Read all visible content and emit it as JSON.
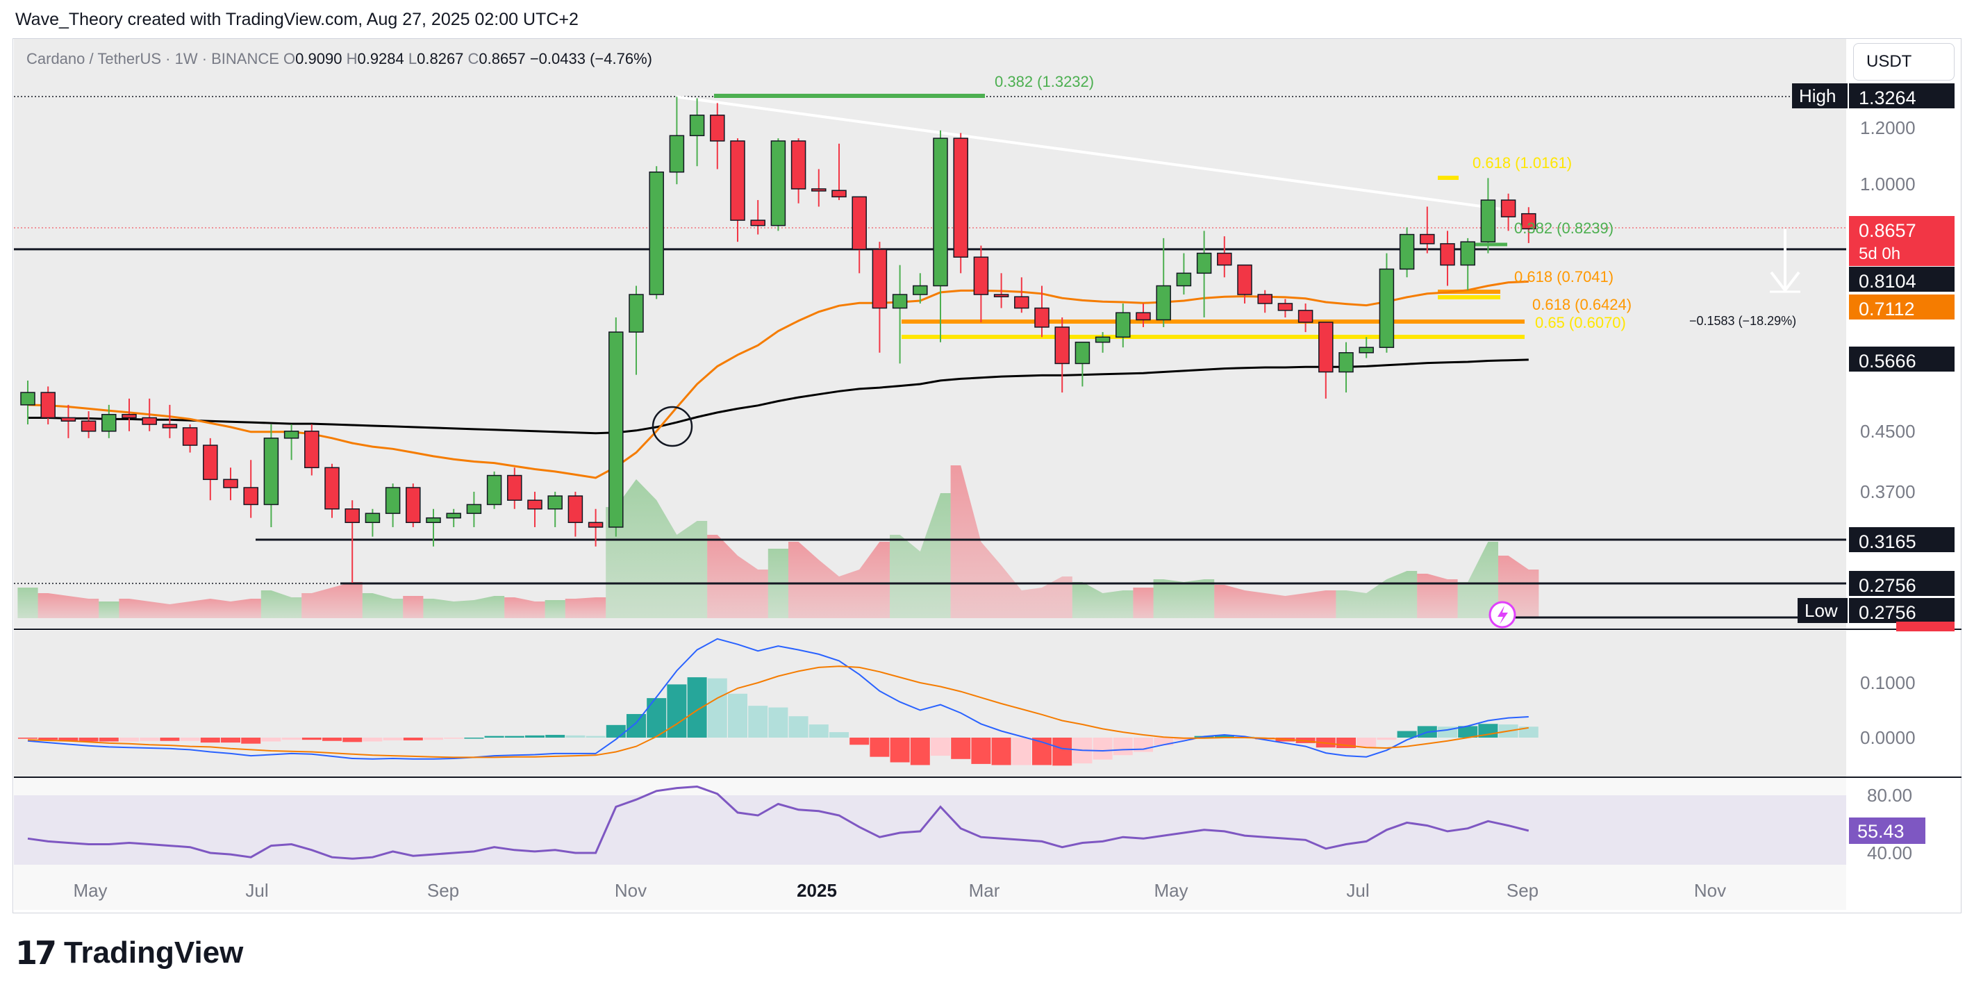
{
  "credit": "Wave_Theory created with TradingView.com, Aug 27, 2025 02:00 UTC+2",
  "brand": {
    "name": "TradingView",
    "mark": "17"
  },
  "currency_button": "USDT",
  "legend": {
    "symbol": "Cardano / TetherUS · 1W · BINANCE",
    "o_label": "O",
    "o": "0.9090",
    "h_label": "H",
    "h": "0.9284",
    "l_label": "L",
    "l": "0.8267",
    "c_label": "C",
    "c": "0.8657",
    "change": "−0.0433 (−4.76%)"
  },
  "colors": {
    "up": "#4caf50",
    "down": "#f23645",
    "ema_orange": "#f57c00",
    "ema_black": "#000000",
    "fib_yellow": "#ffe600",
    "fib_orange": "#ff9800",
    "fib_green": "#4caf50",
    "macd_line": "#2962ff",
    "signal_line": "#f57c00",
    "rsi_line": "#7e57c2"
  },
  "chart_data": [
    {
      "type": "candlestick",
      "title": "Cardano / TetherUS · 1W · BINANCE",
      "x_ticks": [
        "May",
        "Jul",
        "Sep",
        "Nov",
        "2025",
        "Mar",
        "May",
        "Jul",
        "Sep",
        "Nov"
      ],
      "y_scale": "log",
      "y_ticks": [
        1.2,
        1.0,
        0.45,
        0.37
      ],
      "y_tick_labels": [
        "1.2000",
        "1.0000",
        "0.4500",
        "0.3700"
      ],
      "ohlc": [
        {
          "o": 0.49,
          "h": 0.53,
          "l": 0.46,
          "c": 0.51
        },
        {
          "o": 0.51,
          "h": 0.52,
          "l": 0.46,
          "c": 0.47
        },
        {
          "o": 0.47,
          "h": 0.49,
          "l": 0.44,
          "c": 0.465
        },
        {
          "o": 0.465,
          "h": 0.48,
          "l": 0.44,
          "c": 0.45
        },
        {
          "o": 0.45,
          "h": 0.49,
          "l": 0.44,
          "c": 0.475
        },
        {
          "o": 0.475,
          "h": 0.5,
          "l": 0.45,
          "c": 0.47
        },
        {
          "o": 0.47,
          "h": 0.5,
          "l": 0.45,
          "c": 0.46
        },
        {
          "o": 0.46,
          "h": 0.49,
          "l": 0.44,
          "c": 0.455
        },
        {
          "o": 0.455,
          "h": 0.46,
          "l": 0.42,
          "c": 0.43
        },
        {
          "o": 0.43,
          "h": 0.44,
          "l": 0.36,
          "c": 0.385
        },
        {
          "o": 0.385,
          "h": 0.4,
          "l": 0.36,
          "c": 0.375
        },
        {
          "o": 0.375,
          "h": 0.41,
          "l": 0.34,
          "c": 0.355
        },
        {
          "o": 0.355,
          "h": 0.46,
          "l": 0.33,
          "c": 0.44
        },
        {
          "o": 0.44,
          "h": 0.46,
          "l": 0.41,
          "c": 0.45
        },
        {
          "o": 0.45,
          "h": 0.46,
          "l": 0.39,
          "c": 0.4
        },
        {
          "o": 0.4,
          "h": 0.405,
          "l": 0.34,
          "c": 0.35
        },
        {
          "o": 0.35,
          "h": 0.36,
          "l": 0.2756,
          "c": 0.335
        },
        {
          "o": 0.335,
          "h": 0.35,
          "l": 0.32,
          "c": 0.345
        },
        {
          "o": 0.345,
          "h": 0.38,
          "l": 0.33,
          "c": 0.375
        },
        {
          "o": 0.375,
          "h": 0.38,
          "l": 0.33,
          "c": 0.335
        },
        {
          "o": 0.335,
          "h": 0.35,
          "l": 0.31,
          "c": 0.34
        },
        {
          "o": 0.34,
          "h": 0.35,
          "l": 0.33,
          "c": 0.345
        },
        {
          "o": 0.345,
          "h": 0.37,
          "l": 0.33,
          "c": 0.355
        },
        {
          "o": 0.355,
          "h": 0.395,
          "l": 0.35,
          "c": 0.39
        },
        {
          "o": 0.39,
          "h": 0.4,
          "l": 0.35,
          "c": 0.36
        },
        {
          "o": 0.36,
          "h": 0.37,
          "l": 0.33,
          "c": 0.35
        },
        {
          "o": 0.35,
          "h": 0.37,
          "l": 0.33,
          "c": 0.365
        },
        {
          "o": 0.365,
          "h": 0.37,
          "l": 0.32,
          "c": 0.335
        },
        {
          "o": 0.335,
          "h": 0.35,
          "l": 0.31,
          "c": 0.33
        },
        {
          "o": 0.33,
          "h": 0.65,
          "l": 0.32,
          "c": 0.62
        },
        {
          "o": 0.62,
          "h": 0.72,
          "l": 0.54,
          "c": 0.7
        },
        {
          "o": 0.7,
          "h": 1.06,
          "l": 0.69,
          "c": 1.04
        },
        {
          "o": 1.04,
          "h": 1.3264,
          "l": 1.0,
          "c": 1.17
        },
        {
          "o": 1.17,
          "h": 1.32,
          "l": 1.06,
          "c": 1.25
        },
        {
          "o": 1.25,
          "h": 1.3,
          "l": 1.05,
          "c": 1.15
        },
        {
          "o": 1.15,
          "h": 1.16,
          "l": 0.83,
          "c": 0.89
        },
        {
          "o": 0.89,
          "h": 0.95,
          "l": 0.85,
          "c": 0.875
        },
        {
          "o": 0.875,
          "h": 1.16,
          "l": 0.86,
          "c": 1.15
        },
        {
          "o": 1.15,
          "h": 1.16,
          "l": 0.94,
          "c": 0.985
        },
        {
          "o": 0.985,
          "h": 1.05,
          "l": 0.93,
          "c": 0.98
        },
        {
          "o": 0.98,
          "h": 1.14,
          "l": 0.95,
          "c": 0.96
        },
        {
          "o": 0.96,
          "h": 0.96,
          "l": 0.75,
          "c": 0.81
        },
        {
          "o": 0.81,
          "h": 0.83,
          "l": 0.58,
          "c": 0.67
        },
        {
          "o": 0.67,
          "h": 0.77,
          "l": 0.56,
          "c": 0.7
        },
        {
          "o": 0.7,
          "h": 0.75,
          "l": 0.68,
          "c": 0.72
        },
        {
          "o": 0.72,
          "h": 1.19,
          "l": 0.6,
          "c": 1.16
        },
        {
          "o": 1.16,
          "h": 1.18,
          "l": 0.75,
          "c": 0.79
        },
        {
          "o": 0.79,
          "h": 0.82,
          "l": 0.64,
          "c": 0.7
        },
        {
          "o": 0.7,
          "h": 0.75,
          "l": 0.67,
          "c": 0.695
        },
        {
          "o": 0.695,
          "h": 0.74,
          "l": 0.66,
          "c": 0.67
        },
        {
          "o": 0.67,
          "h": 0.72,
          "l": 0.61,
          "c": 0.63
        },
        {
          "o": 0.63,
          "h": 0.65,
          "l": 0.51,
          "c": 0.56
        },
        {
          "o": 0.56,
          "h": 0.6,
          "l": 0.52,
          "c": 0.6
        },
        {
          "o": 0.6,
          "h": 0.62,
          "l": 0.58,
          "c": 0.61
        },
        {
          "o": 0.61,
          "h": 0.68,
          "l": 0.59,
          "c": 0.66
        },
        {
          "o": 0.66,
          "h": 0.68,
          "l": 0.63,
          "c": 0.645
        },
        {
          "o": 0.645,
          "h": 0.84,
          "l": 0.63,
          "c": 0.72
        },
        {
          "o": 0.72,
          "h": 0.8,
          "l": 0.7,
          "c": 0.75
        },
        {
          "o": 0.75,
          "h": 0.86,
          "l": 0.65,
          "c": 0.8
        },
        {
          "o": 0.8,
          "h": 0.845,
          "l": 0.74,
          "c": 0.77
        },
        {
          "o": 0.77,
          "h": 0.77,
          "l": 0.68,
          "c": 0.7
        },
        {
          "o": 0.7,
          "h": 0.71,
          "l": 0.66,
          "c": 0.68
        },
        {
          "o": 0.68,
          "h": 0.69,
          "l": 0.65,
          "c": 0.665
        },
        {
          "o": 0.665,
          "h": 0.68,
          "l": 0.62,
          "c": 0.64
        },
        {
          "o": 0.64,
          "h": 0.64,
          "l": 0.5,
          "c": 0.545
        },
        {
          "o": 0.545,
          "h": 0.6,
          "l": 0.51,
          "c": 0.58
        },
        {
          "o": 0.58,
          "h": 0.61,
          "l": 0.57,
          "c": 0.59
        },
        {
          "o": 0.59,
          "h": 0.8,
          "l": 0.58,
          "c": 0.76
        },
        {
          "o": 0.76,
          "h": 0.87,
          "l": 0.74,
          "c": 0.85
        },
        {
          "o": 0.85,
          "h": 0.93,
          "l": 0.8,
          "c": 0.825
        },
        {
          "o": 0.825,
          "h": 0.86,
          "l": 0.72,
          "c": 0.77
        },
        {
          "o": 0.77,
          "h": 0.84,
          "l": 0.71,
          "c": 0.83
        },
        {
          "o": 0.83,
          "h": 1.02,
          "l": 0.8,
          "c": 0.95
        },
        {
          "o": 0.95,
          "h": 0.97,
          "l": 0.86,
          "c": 0.9
        },
        {
          "o": 0.909,
          "h": 0.9284,
          "l": 0.8267,
          "c": 0.8657
        }
      ],
      "volume": [
        0.22,
        0.18,
        0.16,
        0.14,
        0.12,
        0.14,
        0.12,
        0.1,
        0.12,
        0.14,
        0.12,
        0.14,
        0.2,
        0.15,
        0.18,
        0.22,
        0.26,
        0.18,
        0.14,
        0.16,
        0.14,
        0.12,
        0.13,
        0.16,
        0.15,
        0.12,
        0.13,
        0.14,
        0.15,
        0.8,
        1.0,
        0.85,
        0.6,
        0.7,
        0.6,
        0.45,
        0.35,
        0.5,
        0.55,
        0.42,
        0.3,
        0.35,
        0.55,
        0.6,
        0.48,
        0.9,
        1.1,
        0.55,
        0.38,
        0.2,
        0.22,
        0.3,
        0.26,
        0.18,
        0.2,
        0.22,
        0.28,
        0.26,
        0.28,
        0.24,
        0.2,
        0.18,
        0.16,
        0.18,
        0.2,
        0.2,
        0.18,
        0.28,
        0.34,
        0.32,
        0.28,
        0.26,
        0.55,
        0.45,
        0.35
      ],
      "ema_short": [
        0.49,
        0.489,
        0.487,
        0.484,
        0.481,
        0.478,
        0.475,
        0.472,
        0.468,
        0.462,
        0.456,
        0.449,
        0.449,
        0.449,
        0.446,
        0.44,
        0.433,
        0.428,
        0.425,
        0.42,
        0.415,
        0.411,
        0.408,
        0.406,
        0.402,
        0.398,
        0.395,
        0.391,
        0.387,
        0.401,
        0.42,
        0.45,
        0.486,
        0.524,
        0.555,
        0.576,
        0.594,
        0.622,
        0.643,
        0.662,
        0.675,
        0.681,
        0.681,
        0.683,
        0.686,
        0.705,
        0.709,
        0.709,
        0.708,
        0.706,
        0.702,
        0.692,
        0.687,
        0.684,
        0.683,
        0.681,
        0.683,
        0.686,
        0.692,
        0.695,
        0.696,
        0.695,
        0.694,
        0.691,
        0.683,
        0.679,
        0.676,
        0.684,
        0.694,
        0.702,
        0.705,
        0.71,
        0.72,
        0.728,
        0.73
      ],
      "ema_long": [
        0.47,
        0.47,
        0.469,
        0.469,
        0.468,
        0.468,
        0.467,
        0.467,
        0.466,
        0.465,
        0.464,
        0.463,
        0.462,
        0.461,
        0.461,
        0.46,
        0.459,
        0.458,
        0.457,
        0.456,
        0.455,
        0.454,
        0.453,
        0.452,
        0.451,
        0.45,
        0.449,
        0.448,
        0.447,
        0.448,
        0.451,
        0.456,
        0.463,
        0.471,
        0.478,
        0.484,
        0.489,
        0.496,
        0.502,
        0.507,
        0.512,
        0.516,
        0.518,
        0.521,
        0.524,
        0.53,
        0.533,
        0.535,
        0.537,
        0.538,
        0.539,
        0.539,
        0.54,
        0.541,
        0.542,
        0.543,
        0.545,
        0.547,
        0.549,
        0.551,
        0.552,
        0.553,
        0.553,
        0.554,
        0.554,
        0.554,
        0.555,
        0.557,
        0.559,
        0.561,
        0.562,
        0.563,
        0.565,
        0.566,
        0.567
      ],
      "trendline": {
        "from": 1.3264,
        "to": 0.92
      },
      "annotations": [
        {
          "label": "0.382 (1.3232)",
          "price": 1.3232,
          "color": "#4caf50"
        },
        {
          "label": "0.618 (1.0161)",
          "price": 1.0161,
          "color": "#ffe600"
        },
        {
          "label": "0.382 (0.8239)",
          "price": 0.8239,
          "color": "#4caf50"
        },
        {
          "label": "0.618 (0.7041)",
          "price": 0.7041,
          "color": "#ff9800"
        },
        {
          "label": "0.618 (0.6424)",
          "price": 0.6424,
          "color": "#ff9800"
        },
        {
          "label": "0.65 (0.6070)",
          "price": 0.607,
          "color": "#ffe600"
        }
      ],
      "measure_label": "−0.1583 (−18.29%)",
      "horizontal_levels": [
        {
          "price": 0.8104,
          "label": "0.8104"
        },
        {
          "price": 0.3165,
          "label": "0.3165"
        },
        {
          "price": 0.2756,
          "label": "0.2756"
        }
      ],
      "price_badges": [
        {
          "label": "High",
          "value": "1.3264"
        },
        {
          "value": "0.8657",
          "sub": "5d 0h"
        },
        {
          "value": "0.8104"
        },
        {
          "value": "0.7112"
        },
        {
          "value": "0.5666"
        },
        {
          "value": "0.3165"
        },
        {
          "value": "0.2756"
        },
        {
          "label": "Low",
          "value": "0.2756"
        }
      ]
    },
    {
      "type": "line",
      "title": "",
      "y_ticks": [
        0.1,
        0.0
      ],
      "y_tick_labels": [
        "0.1000",
        "0.0000"
      ],
      "macd": [
        -0.006,
        -0.009,
        -0.012,
        -0.015,
        -0.017,
        -0.018,
        -0.019,
        -0.02,
        -0.022,
        -0.026,
        -0.029,
        -0.033,
        -0.031,
        -0.029,
        -0.03,
        -0.034,
        -0.038,
        -0.039,
        -0.038,
        -0.039,
        -0.039,
        -0.038,
        -0.036,
        -0.033,
        -0.032,
        -0.031,
        -0.029,
        -0.029,
        -0.029,
        -0.003,
        0.027,
        0.074,
        0.122,
        0.16,
        0.18,
        0.17,
        0.158,
        0.167,
        0.16,
        0.152,
        0.14,
        0.115,
        0.085,
        0.065,
        0.05,
        0.06,
        0.045,
        0.025,
        0.012,
        0.002,
        -0.008,
        -0.02,
        -0.023,
        -0.024,
        -0.022,
        -0.021,
        -0.013,
        -0.006,
        0.002,
        0.005,
        0.002,
        -0.004,
        -0.01,
        -0.016,
        -0.028,
        -0.033,
        -0.035,
        -0.023,
        -0.004,
        0.01,
        0.014,
        0.021,
        0.031,
        0.036,
        0.038
      ],
      "signal": [
        -0.004,
        -0.005,
        -0.006,
        -0.008,
        -0.01,
        -0.011,
        -0.013,
        -0.014,
        -0.016,
        -0.017,
        -0.02,
        -0.022,
        -0.024,
        -0.025,
        -0.026,
        -0.028,
        -0.03,
        -0.032,
        -0.033,
        -0.034,
        -0.035,
        -0.036,
        -0.036,
        -0.036,
        -0.035,
        -0.035,
        -0.034,
        -0.033,
        -0.032,
        -0.026,
        -0.016,
        0.002,
        0.025,
        0.05,
        0.072,
        0.09,
        0.1,
        0.112,
        0.121,
        0.128,
        0.13,
        0.128,
        0.12,
        0.11,
        0.1,
        0.093,
        0.084,
        0.073,
        0.062,
        0.052,
        0.042,
        0.031,
        0.024,
        0.016,
        0.01,
        0.005,
        0.001,
        -0.001,
        -0.001,
        0.0,
        0.0,
        -0.001,
        -0.003,
        -0.006,
        -0.01,
        -0.014,
        -0.018,
        -0.019,
        -0.016,
        -0.011,
        -0.006,
        0.0,
        0.006,
        0.012,
        0.018
      ]
    },
    {
      "type": "line",
      "title": "",
      "y_ticks": [
        80,
        40
      ],
      "y_tick_labels": [
        "80.00",
        "40.00"
      ],
      "current_label": "55.43",
      "rsi": [
        50,
        48,
        47,
        46,
        46,
        47,
        46,
        45,
        44,
        40,
        39,
        37,
        45,
        46,
        42,
        37,
        36,
        37,
        41,
        38,
        39,
        40,
        41,
        44,
        42,
        41,
        42,
        40,
        40,
        72,
        77,
        83,
        85,
        86,
        81,
        68,
        66,
        74,
        70,
        69,
        66,
        58,
        51,
        54,
        55,
        72,
        57,
        51,
        50,
        49,
        48,
        44,
        47,
        48,
        51,
        50,
        52,
        54,
        56,
        55,
        52,
        51,
        50,
        49,
        43,
        46,
        48,
        56,
        61,
        59,
        55,
        57,
        62,
        59,
        55.43
      ]
    }
  ]
}
